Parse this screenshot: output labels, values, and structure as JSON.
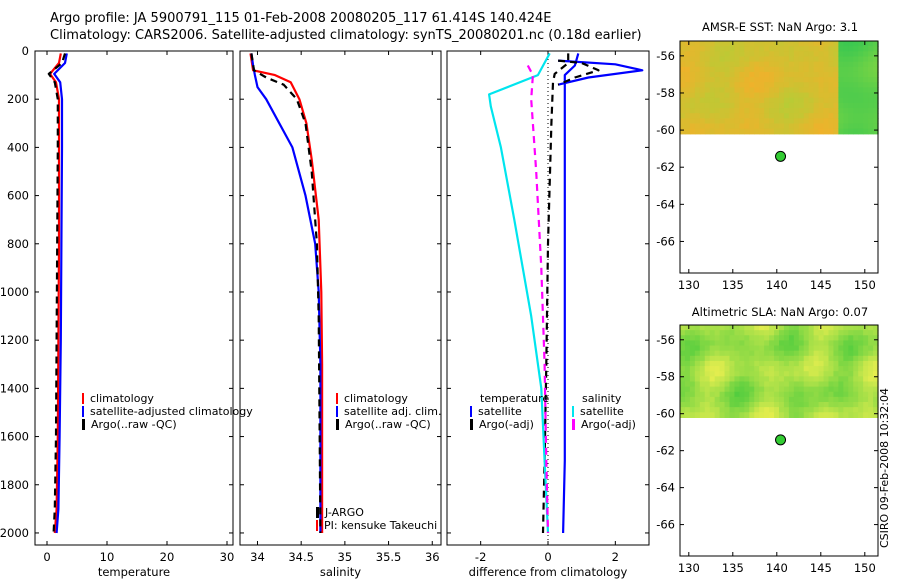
{
  "header": {
    "line1": "Argo profile: JA 5900791_115 01-Feb-2008 20080205_117 61.414S 140.424E",
    "line2": "Climatology: CARS2006. Satellite-adjusted climatology: synTS_20080201.nc (0.18d earlier)"
  },
  "stamp": "CSIRO 09-Feb-2008 10:32:04",
  "colors": {
    "climatology": "#ff0000",
    "satellite": "#0000ff",
    "argo": "#000000",
    "temp_diff_satellite": "#00e5ee",
    "temp_diff_argo": "#ff00ff",
    "dot": "#33cc33"
  },
  "chart_data": [
    {
      "type": "line",
      "id": "temperature-profile",
      "xlabel": "temperature",
      "xlim": [
        -2,
        31
      ],
      "xticks": [
        "0",
        "10",
        "20",
        "30"
      ],
      "xtick_values": [
        0,
        10,
        20,
        30
      ],
      "ylim": [
        2050,
        0
      ],
      "yticks": [
        "0",
        "200",
        "400",
        "600",
        "800",
        "1000",
        "1200",
        "1400",
        "1600",
        "1800",
        "2000"
      ],
      "ytick_values": [
        0,
        200,
        400,
        600,
        800,
        1000,
        1200,
        1400,
        1600,
        1800,
        2000
      ],
      "legend": [
        "climatology",
        "satellite-adjusted climatology",
        "Argo(..raw -QC)"
      ],
      "series": [
        {
          "name": "climatology",
          "style": "solid",
          "color": "#ff0000",
          "x": [
            2.3,
            2.0,
            0.5,
            1.5,
            2.0,
            2.0,
            2.0,
            1.9,
            1.8,
            1.6,
            1.3
          ],
          "y": [
            10,
            50,
            95,
            130,
            200,
            400,
            800,
            1200,
            1600,
            1900,
            2000
          ]
        },
        {
          "name": "satellite-adjusted climatology",
          "style": "solid",
          "color": "#0000ff",
          "x": [
            3.3,
            3.0,
            1.2,
            2.2,
            2.5,
            2.5,
            2.4,
            2.3,
            2.1,
            1.9,
            1.6
          ],
          "y": [
            10,
            50,
            95,
            130,
            200,
            400,
            800,
            1200,
            1600,
            1900,
            2000
          ]
        },
        {
          "name": "Argo(..raw -QC)",
          "style": "dashed",
          "color": "#000000",
          "x": [
            3.0,
            2.5,
            0.3,
            1.3,
            1.8,
            1.8,
            1.7,
            1.6,
            1.5,
            1.3,
            1.1
          ],
          "y": [
            10,
            50,
            95,
            130,
            200,
            400,
            800,
            1200,
            1600,
            1900,
            2000
          ]
        }
      ]
    },
    {
      "type": "line",
      "id": "salinity-profile",
      "xlabel": "salinity",
      "xlim": [
        33.8,
        36.1
      ],
      "xticks": [
        "34",
        "34.5",
        "35",
        "35.5",
        "36"
      ],
      "xtick_values": [
        34,
        34.5,
        35,
        35.5,
        36
      ],
      "ylim": [
        2050,
        0
      ],
      "legend": [
        "climatology",
        "satellite adj. clim.",
        "Argo(..raw -QC)"
      ],
      "annotation": [
        "J-ARGO",
        "PI: kensuke Takeuchi"
      ],
      "series": [
        {
          "name": "climatology",
          "style": "solid",
          "color": "#ff0000",
          "x": [
            33.92,
            33.95,
            34.2,
            34.38,
            34.48,
            34.56,
            34.62,
            34.7,
            34.73,
            34.74,
            34.74,
            34.74,
            34.74
          ],
          "y": [
            10,
            80,
            100,
            130,
            200,
            300,
            450,
            700,
            1000,
            1300,
            1600,
            1900,
            2000
          ]
        },
        {
          "name": "satellite adj. clim.",
          "style": "solid",
          "color": "#0000ff",
          "x": [
            33.93,
            33.95,
            33.97,
            34.0,
            34.1,
            34.25,
            34.4,
            34.55,
            34.66,
            34.7,
            34.72,
            34.72,
            34.72
          ],
          "y": [
            10,
            60,
            100,
            150,
            200,
            300,
            400,
            600,
            800,
            1000,
            1300,
            1700,
            2000
          ]
        },
        {
          "name": "Argo(..raw -QC)",
          "style": "dashed",
          "color": "#000000",
          "x": [
            33.93,
            33.96,
            34.1,
            34.3,
            34.45,
            34.55,
            34.62,
            34.68,
            34.7,
            34.71,
            34.72
          ],
          "y": [
            10,
            80,
            110,
            140,
            200,
            300,
            500,
            800,
            1100,
            1500,
            2000
          ]
        }
      ]
    },
    {
      "type": "line",
      "id": "difference-profile",
      "xlabel": "difference from climatology",
      "xlim": [
        -3,
        3
      ],
      "xticks": [
        "-2",
        "0",
        "2"
      ],
      "xtick_values": [
        -2,
        0,
        2
      ],
      "ylim": [
        2050,
        0
      ],
      "legend_left_title": "temperature",
      "legend_left": [
        "satellite",
        "Argo(-adj)"
      ],
      "legend_right_title": "salinity",
      "legend_right": [
        "satellite",
        "Argo(-adj)"
      ],
      "series": [
        {
          "name": "temperature satellite",
          "style": "solid",
          "color": "#0000ff",
          "x": [
            0.9,
            0.8,
            0.5,
            0.5,
            0.5,
            0.5,
            0.5,
            0.5,
            0.45
          ],
          "y": [
            10,
            60,
            100,
            200,
            500,
            900,
            1300,
            1700,
            2000
          ]
        },
        {
          "name": "temperature Argo(-adj)",
          "style": "dashed",
          "color": "#000000",
          "x": [
            0.6,
            0.6,
            0.2,
            0.15,
            0.1,
            0.0,
            -0.05,
            -0.1,
            -0.15
          ],
          "y": [
            10,
            50,
            95,
            130,
            300,
            800,
            1300,
            1700,
            2000
          ]
        },
        {
          "name": "salinity satellite",
          "style": "solid",
          "color": "#00e5ee",
          "x": [
            0.05,
            -0.3,
            -1.75,
            -1.7,
            -1.4,
            -1.0,
            -0.5,
            -0.2,
            -0.1,
            0.0
          ],
          "y": [
            10,
            100,
            180,
            230,
            400,
            700,
            1100,
            1400,
            1700,
            2000
          ]
        },
        {
          "name": "salinity Argo(-adj)",
          "style": "dashed",
          "color": "#ff00ff",
          "x": [
            -0.6,
            -0.45,
            -0.5,
            -0.35,
            -0.2,
            -0.1,
            -0.05,
            0.0
          ],
          "y": [
            60,
            100,
            200,
            500,
            900,
            1300,
            1700,
            2000
          ]
        },
        {
          "name": "peak",
          "style": "solid",
          "color": "#0000ff",
          "x": [
            0.3,
            2.0,
            2.8,
            1.2,
            0.3
          ],
          "y": [
            40,
            55,
            80,
            110,
            140
          ]
        },
        {
          "name": "peak dashed",
          "style": "dashed",
          "color": "#000000",
          "x": [
            0.3,
            1.0,
            1.5,
            0.8,
            0.3
          ],
          "y": [
            40,
            50,
            80,
            110,
            140
          ]
        }
      ]
    },
    {
      "type": "heatmap",
      "id": "amsr-e-sst-map",
      "title": "AMSR-E SST: NaN Argo: 3.1",
      "xlim": [
        129,
        151.5
      ],
      "xticks": [
        "130",
        "135",
        "140",
        "145",
        "150"
      ],
      "xtick_values": [
        130,
        135,
        140,
        145,
        150
      ],
      "ylim": [
        -67.7,
        -55.2
      ],
      "yticks": [
        "-56",
        "-58",
        "-60",
        "-62",
        "-64",
        "-66"
      ],
      "ytick_values": [
        -56,
        -58,
        -60,
        -62,
        -64,
        -66
      ],
      "data_lat_range": [
        -60.2,
        -55.2
      ],
      "point": {
        "lon": 140.424,
        "lat": -61.414
      }
    },
    {
      "type": "heatmap",
      "id": "altimetric-sla-map",
      "title": "Altimetric SLA: NaN Argo: 0.07",
      "xlim": [
        129,
        151.5
      ],
      "xticks": [
        "130",
        "135",
        "140",
        "145",
        "150"
      ],
      "xtick_values": [
        130,
        135,
        140,
        145,
        150
      ],
      "ylim": [
        -67.7,
        -55.2
      ],
      "yticks": [
        "-56",
        "-58",
        "-60",
        "-62",
        "-64",
        "-66"
      ],
      "ytick_values": [
        -56,
        -58,
        -60,
        -62,
        -64,
        -66
      ],
      "data_lat_range": [
        -60.2,
        -55.2
      ],
      "point": {
        "lon": 140.424,
        "lat": -61.414
      }
    }
  ]
}
